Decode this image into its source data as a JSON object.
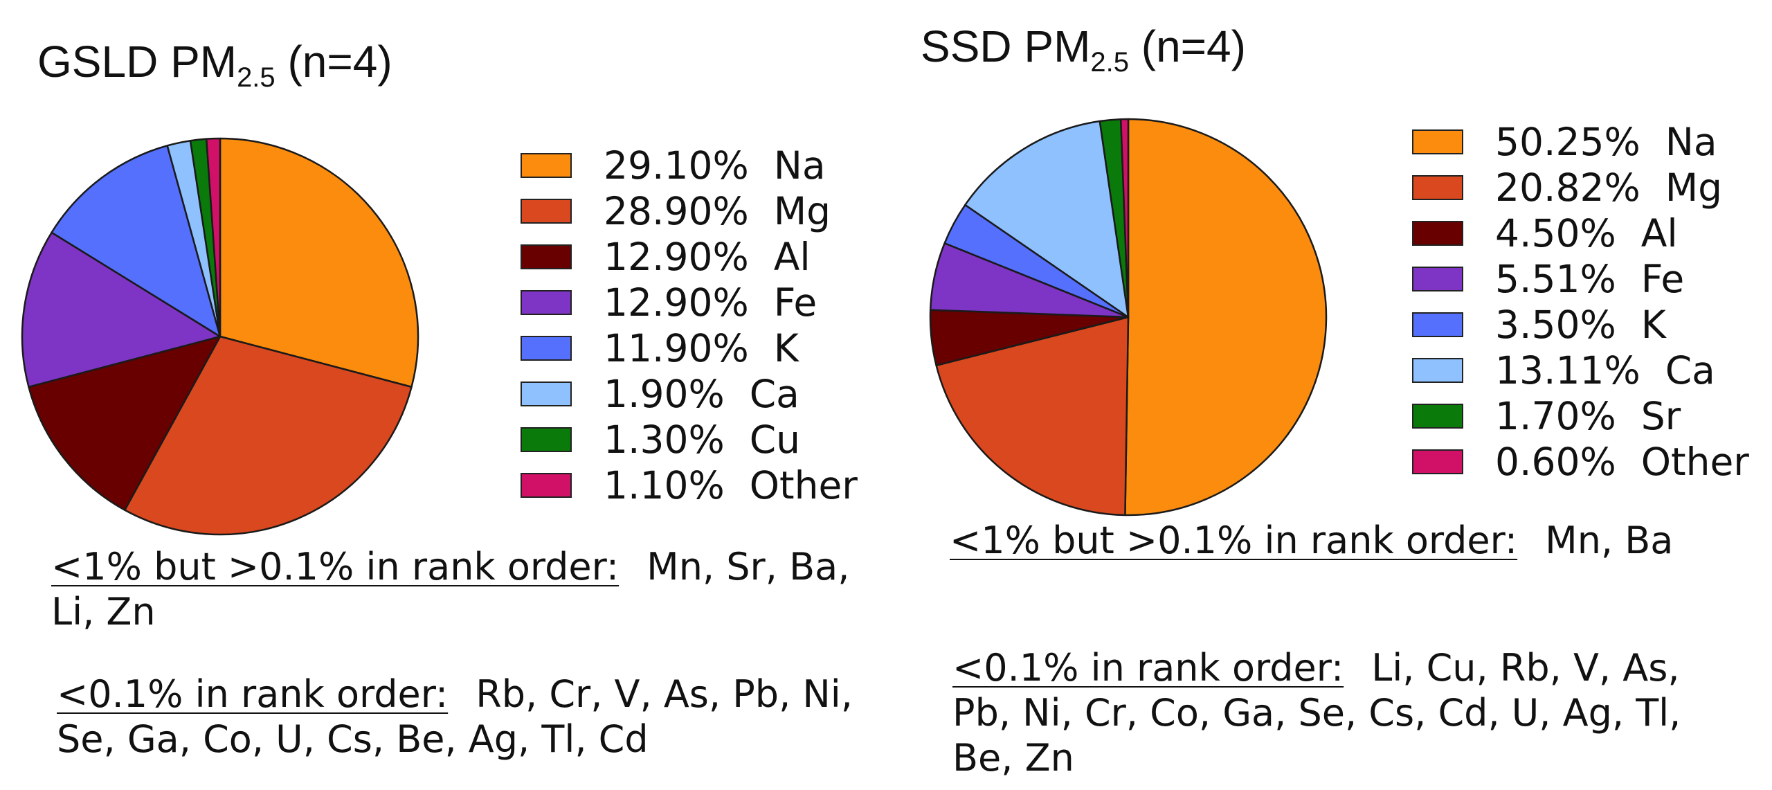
{
  "chart_data": [
    {
      "type": "pie",
      "title_main": "GSLD PM",
      "title_sub": "2.5",
      "title_tail": "(n=4)",
      "slices": [
        {
          "label": "Na",
          "value_text": "29.10%",
          "value": 29.1,
          "color": "#FB8C0E"
        },
        {
          "label": "Mg",
          "value_text": "28.90%",
          "value": 28.9,
          "color": "#D9481E"
        },
        {
          "label": "Al",
          "value_text": "12.90%",
          "value": 12.9,
          "color": "#680000"
        },
        {
          "label": "Fe",
          "value_text": "12.90%",
          "value": 12.9,
          "color": "#7E34C4"
        },
        {
          "label": "K",
          "value_text": "11.90%",
          "value": 11.9,
          "color": "#5470FD"
        },
        {
          "label": "Ca",
          "value_text": "1.90%",
          "value": 1.9,
          "color": "#8FC1FF"
        },
        {
          "label": "Cu",
          "value_text": "1.30%",
          "value": 1.3,
          "color": "#0A7A0A"
        },
        {
          "label": "Other",
          "value_text": "1.10%",
          "value": 1.1,
          "color": "#D11167"
        }
      ],
      "notes": [
        {
          "heading": "<1% but >0.1% in rank order:",
          "text": "Mn, Sr, Ba, Li, Zn"
        },
        {
          "heading": "<0.1% in rank order:",
          "text": "Rb, Cr, V, As, Pb, Ni, Se, Ga, Co, U, Cs, Be, Ag, Tl, Cd"
        }
      ]
    },
    {
      "type": "pie",
      "title_main": "SSD PM",
      "title_sub": "2.5",
      "title_tail": "(n=4)",
      "slices": [
        {
          "label": "Na",
          "value_text": "50.25%",
          "value": 50.25,
          "color": "#FB8C0E"
        },
        {
          "label": "Mg",
          "value_text": "20.82%",
          "value": 20.82,
          "color": "#D9481E"
        },
        {
          "label": "Al",
          "value_text": "4.50%",
          "value": 4.5,
          "color": "#680000"
        },
        {
          "label": "Fe",
          "value_text": "5.51%",
          "value": 5.51,
          "color": "#7E34C4"
        },
        {
          "label": "K",
          "value_text": "3.50%",
          "value": 3.5,
          "color": "#5470FD"
        },
        {
          "label": "Ca",
          "value_text": "13.11%",
          "value": 13.11,
          "color": "#8FC1FF"
        },
        {
          "label": "Sr",
          "value_text": "1.70%",
          "value": 1.7,
          "color": "#0A7A0A"
        },
        {
          "label": "Other",
          "value_text": "0.60%",
          "value": 0.6,
          "color": "#D11167"
        }
      ],
      "notes": [
        {
          "heading": "<1% but >0.1% in rank order:",
          "text": "Mn, Ba"
        },
        {
          "heading": "<0.1% in rank order:",
          "text": "Li, Cu, Rb, V, As, Pb, Ni, Cr, Co, Ga, Se, Cs, Cd, U, Ag, Tl, Be, Zn"
        }
      ]
    }
  ]
}
